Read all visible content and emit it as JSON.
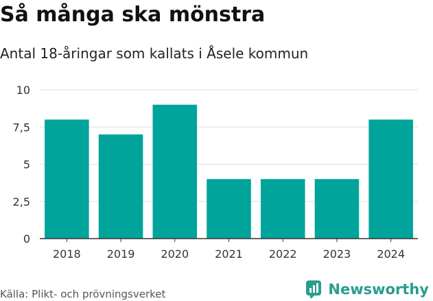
{
  "header": {
    "title": "Så många ska mönstra",
    "subtitle": "Antal 18-åringar som kallats i Åsele kommun"
  },
  "footer": {
    "source": "Källa: Plikt- och prövningsverket",
    "brand": "Newsworthy",
    "brand_icon": "bar-chart-icon"
  },
  "colors": {
    "bar": "#00a49a",
    "grid": "#dddddd",
    "axis": "#333333",
    "brand": "#2a9d8f"
  },
  "chart_data": {
    "type": "bar",
    "title": "Så många ska mönstra",
    "subtitle": "Antal 18-åringar som kallats i Åsele kommun",
    "xlabel": "",
    "ylabel": "",
    "categories": [
      "2018",
      "2019",
      "2020",
      "2021",
      "2022",
      "2023",
      "2024"
    ],
    "values": [
      8,
      7,
      9,
      4,
      4,
      4,
      8
    ],
    "ylim": [
      0,
      10
    ],
    "yticks": [
      0,
      2.5,
      5,
      7.5,
      10
    ],
    "ytick_labels": [
      "0",
      "2,5",
      "5",
      "7,5",
      "10"
    ],
    "grid": true
  }
}
